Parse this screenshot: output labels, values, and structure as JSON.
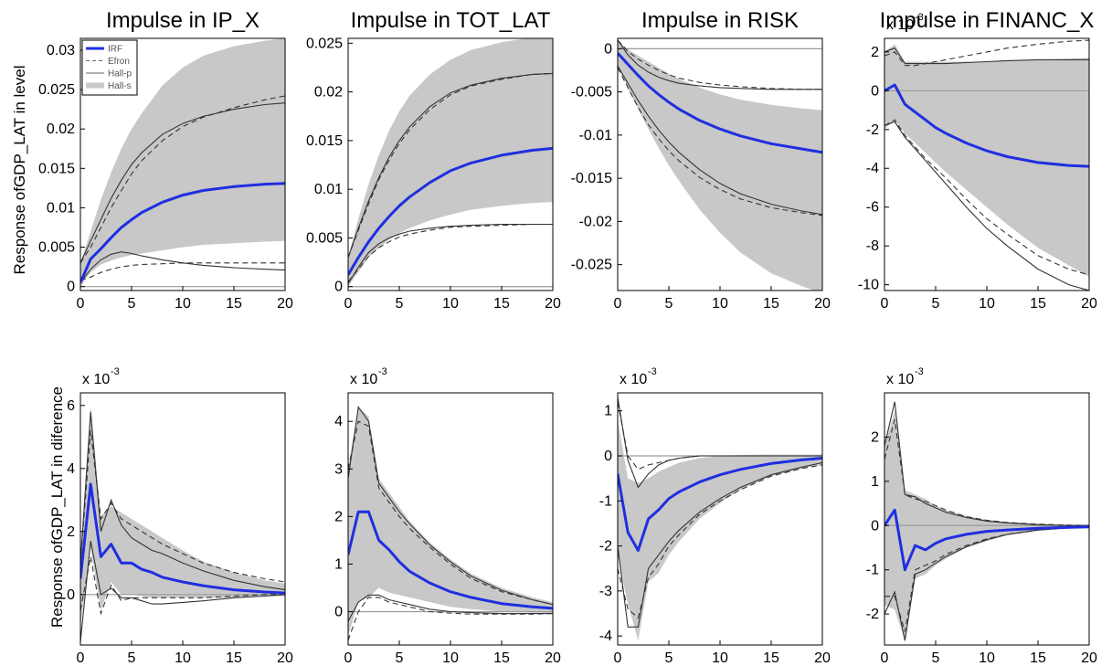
{
  "figure": {
    "row_labels": [
      "Response ofGDP_LAT in level",
      "Response ofGDP_LAT in diference"
    ]
  },
  "legend": {
    "entries": [
      "IRF",
      "Efron",
      "Hall-p",
      "Hall-s"
    ]
  },
  "colors": {
    "irf": "#1f2fe0",
    "band": "#c8c8c8",
    "line": "#333333",
    "zero": "#9a9a9a"
  },
  "chart_data": [
    {
      "type": "line",
      "title": "Impulse in IP_X",
      "row": 0,
      "col": 0,
      "xlim": [
        0,
        20
      ],
      "ylim": [
        -0.0005,
        0.0315
      ],
      "xticks": [
        0,
        5,
        10,
        15,
        20
      ],
      "xtick_labels": [
        "0",
        "5",
        "10",
        "15",
        "20"
      ],
      "yticks": [
        0,
        0.005,
        0.01,
        0.015,
        0.02,
        0.025,
        0.03
      ],
      "ytick_labels": [
        "0",
        "0.005",
        "0.01",
        "0.015",
        "0.02",
        "0.025",
        "0.03"
      ],
      "exponent_label": "",
      "x": [
        0,
        1,
        2,
        3,
        4,
        5,
        6,
        8,
        10,
        12,
        15,
        18,
        20
      ],
      "irf": [
        0.0005,
        0.0035,
        0.0048,
        0.0062,
        0.0075,
        0.0085,
        0.0094,
        0.0107,
        0.0116,
        0.0122,
        0.0127,
        0.013,
        0.0131
      ],
      "hall_s_upper": [
        0.003,
        0.007,
        0.011,
        0.0145,
        0.0175,
        0.02,
        0.022,
        0.0255,
        0.0278,
        0.0293,
        0.0305,
        0.0312,
        0.0315
      ],
      "hall_s_lower": [
        0.0,
        0.0018,
        0.0028,
        0.0033,
        0.0037,
        0.004,
        0.0042,
        0.0046,
        0.005,
        0.0053,
        0.0055,
        0.0057,
        0.0058
      ],
      "hall_p_upper": [
        0.003,
        0.0058,
        0.0085,
        0.0112,
        0.0135,
        0.0155,
        0.017,
        0.0193,
        0.0207,
        0.0216,
        0.0225,
        0.0231,
        0.0233
      ],
      "hall_p_lower": [
        0.0005,
        0.0022,
        0.0034,
        0.0041,
        0.0044,
        0.0042,
        0.0039,
        0.0034,
        0.003,
        0.0027,
        0.0024,
        0.0022,
        0.0021
      ],
      "efron_upper": [
        0.003,
        0.005,
        0.0075,
        0.01,
        0.0122,
        0.0143,
        0.016,
        0.0185,
        0.0203,
        0.0215,
        0.0227,
        0.0237,
        0.0242
      ],
      "efron_lower": [
        0.0008,
        0.0012,
        0.0018,
        0.0022,
        0.0025,
        0.0027,
        0.0028,
        0.0029,
        0.003,
        0.003,
        0.003,
        0.003,
        0.003
      ]
    },
    {
      "type": "line",
      "title": "Impulse in TOT_LAT",
      "row": 0,
      "col": 1,
      "xlim": [
        0,
        20
      ],
      "ylim": [
        -0.0004,
        0.0255
      ],
      "xticks": [
        0,
        5,
        10,
        15,
        20
      ],
      "xtick_labels": [
        "0",
        "5",
        "10",
        "15",
        "20"
      ],
      "yticks": [
        0,
        0.005,
        0.01,
        0.015,
        0.02,
        0.025
      ],
      "ytick_labels": [
        "0",
        "0.005",
        "0.01",
        "0.015",
        "0.02",
        "0.025"
      ],
      "exponent_label": "",
      "x": [
        0,
        1,
        2,
        3,
        4,
        5,
        6,
        8,
        10,
        12,
        15,
        18,
        20
      ],
      "irf": [
        0.0012,
        0.003,
        0.0046,
        0.006,
        0.0072,
        0.0083,
        0.0092,
        0.0107,
        0.0119,
        0.0127,
        0.0135,
        0.014,
        0.0142
      ],
      "hall_s_upper": [
        0.003,
        0.007,
        0.0105,
        0.0135,
        0.016,
        0.018,
        0.0196,
        0.0218,
        0.0233,
        0.0243,
        0.0251,
        0.0256,
        0.0258
      ],
      "hall_s_lower": [
        0.0,
        0.0015,
        0.003,
        0.004,
        0.0048,
        0.0055,
        0.006,
        0.0068,
        0.0074,
        0.0079,
        0.0083,
        0.0086,
        0.0087
      ],
      "hall_p_upper": [
        0.003,
        0.006,
        0.0088,
        0.0112,
        0.0133,
        0.015,
        0.0164,
        0.0185,
        0.0199,
        0.0207,
        0.0214,
        0.0218,
        0.0219
      ],
      "hall_p_lower": [
        0.0003,
        0.002,
        0.0035,
        0.0044,
        0.005,
        0.0054,
        0.0057,
        0.006,
        0.0062,
        0.0063,
        0.0064,
        0.0064,
        0.0064
      ],
      "efron_upper": [
        0.003,
        0.0058,
        0.0085,
        0.011,
        0.013,
        0.0147,
        0.0161,
        0.0182,
        0.0197,
        0.0206,
        0.0213,
        0.0218,
        0.0219
      ],
      "efron_lower": [
        0.0005,
        0.0018,
        0.0031,
        0.004,
        0.0046,
        0.0051,
        0.0054,
        0.0058,
        0.0061,
        0.0062,
        0.0063,
        0.0064,
        0.0064
      ]
    },
    {
      "type": "line",
      "title": "Impulse in RISK",
      "row": 0,
      "col": 2,
      "xlim": [
        0,
        20
      ],
      "ylim": [
        -0.028,
        0.0012
      ],
      "xticks": [
        0,
        5,
        10,
        15,
        20
      ],
      "xtick_labels": [
        "0",
        "5",
        "10",
        "15",
        "20"
      ],
      "yticks": [
        0,
        -0.005,
        -0.01,
        -0.015,
        -0.02,
        -0.025
      ],
      "ytick_labels": [
        "0",
        "-0.005",
        "-0.01",
        "-0.015",
        "-0.02",
        "-0.025"
      ],
      "exponent_label": "",
      "x": [
        0,
        1,
        2,
        3,
        4,
        5,
        6,
        8,
        10,
        12,
        15,
        18,
        20
      ],
      "irf": [
        -0.0005,
        -0.0018,
        -0.0031,
        -0.0043,
        -0.0053,
        -0.0062,
        -0.007,
        -0.0083,
        -0.0093,
        -0.0101,
        -0.011,
        -0.0116,
        -0.012
      ],
      "hall_s_upper": [
        0.001,
        -0.0001,
        -0.0008,
        -0.0015,
        -0.0022,
        -0.0029,
        -0.0035,
        -0.0045,
        -0.0053,
        -0.0059,
        -0.0065,
        -0.0069,
        -0.0071
      ],
      "hall_s_lower": [
        -0.002,
        -0.0045,
        -0.007,
        -0.0093,
        -0.0115,
        -0.0135,
        -0.0153,
        -0.0186,
        -0.0213,
        -0.0236,
        -0.026,
        -0.0275,
        -0.0283
      ],
      "hall_p_upper": [
        0.001,
        -0.0007,
        -0.0019,
        -0.0027,
        -0.0033,
        -0.0037,
        -0.004,
        -0.0043,
        -0.0045,
        -0.0046,
        -0.0047,
        -0.0047,
        -0.0047
      ],
      "hall_p_lower": [
        -0.002,
        -0.004,
        -0.006,
        -0.0078,
        -0.0094,
        -0.0108,
        -0.012,
        -0.014,
        -0.0156,
        -0.0168,
        -0.018,
        -0.0188,
        -0.0192
      ],
      "efron_upper": [
        0.001,
        -0.0003,
        -0.0012,
        -0.0019,
        -0.0025,
        -0.003,
        -0.0034,
        -0.0039,
        -0.0042,
        -0.0044,
        -0.0046,
        -0.0047,
        -0.0047
      ],
      "efron_lower": [
        -0.0022,
        -0.0045,
        -0.0068,
        -0.0088,
        -0.0104,
        -0.0118,
        -0.013,
        -0.0149,
        -0.0163,
        -0.0174,
        -0.0184,
        -0.019,
        -0.0193
      ]
    },
    {
      "type": "line",
      "title": "Impulse in FINANC_X",
      "row": 0,
      "col": 3,
      "xlim": [
        0,
        20
      ],
      "ylim": [
        -10.3,
        2.7
      ],
      "xticks": [
        0,
        5,
        10,
        15,
        20
      ],
      "xtick_labels": [
        "0",
        "5",
        "10",
        "15",
        "20"
      ],
      "yticks": [
        2,
        0,
        -2,
        -4,
        -6,
        -8,
        -10
      ],
      "ytick_labels": [
        "2",
        "0",
        "-2",
        "-4",
        "-6",
        "-8",
        "-10"
      ],
      "exponent_label": "x 10",
      "x": [
        0,
        1,
        2,
        3,
        4,
        5,
        6,
        8,
        10,
        12,
        15,
        18,
        20
      ],
      "irf": [
        0.0,
        0.3,
        -0.7,
        -1.1,
        -1.5,
        -1.9,
        -2.2,
        -2.7,
        -3.1,
        -3.4,
        -3.7,
        -3.85,
        -3.9
      ],
      "hall_s_upper": [
        2.0,
        2.4,
        1.5,
        1.5,
        1.5,
        1.5,
        1.5,
        1.5,
        1.5,
        1.55,
        1.6,
        1.65,
        1.7
      ],
      "hall_s_lower": [
        -2.0,
        -1.5,
        -2.2,
        -2.7,
        -3.2,
        -3.7,
        -4.2,
        -5.1,
        -6.0,
        -6.9,
        -8.1,
        -9.0,
        -9.6
      ],
      "hall_p_upper": [
        2.0,
        2.2,
        1.4,
        1.4,
        1.4,
        1.4,
        1.4,
        1.45,
        1.5,
        1.55,
        1.6,
        1.6,
        1.6
      ],
      "hall_p_lower": [
        -1.8,
        -1.6,
        -2.4,
        -3.0,
        -3.6,
        -4.2,
        -4.8,
        -6.0,
        -7.1,
        -8.0,
        -9.2,
        -10.0,
        -10.3
      ],
      "efron_upper": [
        1.8,
        2.0,
        1.3,
        1.3,
        1.4,
        1.5,
        1.6,
        1.8,
        2.0,
        2.2,
        2.4,
        2.55,
        2.6
      ],
      "efron_lower": [
        -1.8,
        -1.5,
        -2.3,
        -2.9,
        -3.5,
        -4.0,
        -4.5,
        -5.6,
        -6.6,
        -7.4,
        -8.5,
        -9.2,
        -9.5
      ]
    },
    {
      "type": "line",
      "title": "",
      "row": 1,
      "col": 0,
      "xlim": [
        0,
        20
      ],
      "ylim": [
        -1.6,
        6.4
      ],
      "xticks": [
        0,
        5,
        10,
        15,
        20
      ],
      "xtick_labels": [
        "0",
        "5",
        "10",
        "15",
        "20"
      ],
      "yticks": [
        0,
        2,
        4,
        6
      ],
      "ytick_labels": [
        "0",
        "2",
        "4",
        "6"
      ],
      "exponent_label": "x 10",
      "x": [
        0,
        1,
        2,
        3,
        4,
        5,
        6,
        7,
        8,
        10,
        12,
        15,
        18,
        20
      ],
      "irf": [
        0.5,
        3.5,
        1.2,
        1.6,
        1.0,
        1.0,
        0.8,
        0.7,
        0.55,
        0.4,
        0.28,
        0.15,
        0.08,
        0.05
      ],
      "hall_s_upper": [
        1.0,
        6.0,
        2.5,
        2.8,
        2.6,
        2.4,
        2.2,
        2.0,
        1.8,
        1.4,
        1.05,
        0.7,
        0.45,
        0.35
      ],
      "hall_s_lower": [
        -1.0,
        1.5,
        -0.5,
        0.4,
        0.0,
        0.0,
        -0.05,
        -0.1,
        -0.1,
        -0.1,
        -0.1,
        -0.1,
        -0.05,
        -0.05
      ],
      "hall_p_upper": [
        1.0,
        5.8,
        2.0,
        3.0,
        2.2,
        1.8,
        1.6,
        1.4,
        1.3,
        1.0,
        0.75,
        0.45,
        0.25,
        0.15
      ],
      "hall_p_lower": [
        -1.5,
        1.7,
        0.0,
        0.2,
        -0.1,
        -0.1,
        -0.2,
        -0.3,
        -0.3,
        -0.25,
        -0.2,
        -0.1,
        -0.05,
        0.0
      ],
      "efron_upper": [
        1.0,
        5.2,
        2.4,
        2.9,
        2.4,
        2.2,
        2.0,
        1.8,
        1.6,
        1.3,
        1.0,
        0.7,
        0.5,
        0.4
      ],
      "efron_lower": [
        -0.5,
        1.2,
        -0.6,
        0.3,
        -0.2,
        -0.1,
        -0.1,
        -0.1,
        -0.1,
        -0.1,
        -0.1,
        -0.05,
        0.0,
        0.0
      ]
    },
    {
      "type": "line",
      "title": "",
      "row": 1,
      "col": 1,
      "xlim": [
        0,
        20
      ],
      "ylim": [
        -0.7,
        4.6
      ],
      "xticks": [
        0,
        5,
        10,
        15,
        20
      ],
      "xtick_labels": [
        "0",
        "5",
        "10",
        "15",
        "20"
      ],
      "yticks": [
        0,
        1,
        2,
        3,
        4
      ],
      "ytick_labels": [
        "0",
        "1",
        "2",
        "3",
        "4"
      ],
      "exponent_label": "x 10",
      "x": [
        0,
        1,
        2,
        3,
        4,
        5,
        6,
        8,
        10,
        12,
        15,
        18,
        20
      ],
      "irf": [
        1.2,
        2.1,
        2.1,
        1.5,
        1.3,
        1.05,
        0.85,
        0.6,
        0.42,
        0.3,
        0.17,
        0.1,
        0.07
      ],
      "hall_s_upper": [
        3.0,
        4.3,
        4.1,
        2.8,
        2.5,
        2.2,
        1.9,
        1.45,
        1.1,
        0.8,
        0.5,
        0.3,
        0.2
      ],
      "hall_s_lower": [
        -0.5,
        0.2,
        0.3,
        0.5,
        0.4,
        0.35,
        0.3,
        0.2,
        0.1,
        0.05,
        0.0,
        -0.02,
        -0.03
      ],
      "hall_p_upper": [
        2.8,
        4.3,
        4.0,
        2.7,
        2.4,
        2.1,
        1.85,
        1.4,
        1.05,
        0.75,
        0.45,
        0.25,
        0.15
      ],
      "hall_p_lower": [
        -0.2,
        0.2,
        0.35,
        0.35,
        0.25,
        0.2,
        0.15,
        0.05,
        0.0,
        -0.02,
        -0.04,
        -0.04,
        -0.04
      ],
      "efron_upper": [
        3.0,
        4.0,
        3.9,
        2.6,
        2.3,
        2.0,
        1.75,
        1.35,
        1.0,
        0.7,
        0.42,
        0.25,
        0.15
      ],
      "efron_lower": [
        -0.6,
        0.0,
        0.3,
        0.3,
        0.2,
        0.15,
        0.1,
        0.0,
        -0.03,
        -0.05,
        -0.05,
        -0.05,
        -0.04
      ]
    },
    {
      "type": "line",
      "title": "",
      "row": 1,
      "col": 2,
      "xlim": [
        0,
        20
      ],
      "ylim": [
        -4.2,
        1.4
      ],
      "xticks": [
        0,
        5,
        10,
        15,
        20
      ],
      "xtick_labels": [
        "0",
        "5",
        "10",
        "15",
        "20"
      ],
      "yticks": [
        1,
        0,
        -1,
        -2,
        -3,
        -4
      ],
      "ytick_labels": [
        "1",
        "0",
        "-1",
        "-2",
        "-3",
        "-4"
      ],
      "exponent_label": "x 10",
      "x": [
        0,
        1,
        2,
        3,
        4,
        5,
        6,
        8,
        10,
        12,
        15,
        18,
        20
      ],
      "irf": [
        -0.4,
        -1.7,
        -2.1,
        -1.4,
        -1.2,
        -0.95,
        -0.8,
        -0.58,
        -0.42,
        -0.3,
        -0.17,
        -0.09,
        -0.05
      ],
      "hall_s_upper": [
        0.8,
        -0.5,
        -0.6,
        -0.5,
        -0.35,
        -0.25,
        -0.15,
        -0.05,
        0.0,
        0.02,
        0.03,
        0.03,
        0.03
      ],
      "hall_s_lower": [
        -2.2,
        -3.3,
        -4.1,
        -2.8,
        -2.6,
        -2.2,
        -1.9,
        -1.4,
        -1.05,
        -0.75,
        -0.45,
        -0.28,
        -0.2
      ],
      "hall_p_upper": [
        1.3,
        -0.1,
        -0.7,
        -0.4,
        -0.2,
        -0.1,
        -0.05,
        0.0,
        0.0,
        0.0,
        0.0,
        0.0,
        0.0
      ],
      "hall_p_lower": [
        -2.0,
        -3.8,
        -3.8,
        -2.5,
        -2.2,
        -1.9,
        -1.65,
        -1.25,
        -0.95,
        -0.7,
        -0.42,
        -0.25,
        -0.15
      ],
      "efron_upper": [
        1.2,
        0.0,
        -0.3,
        -0.2,
        -0.15,
        -0.1,
        -0.05,
        0.0,
        0.0,
        0.0,
        0.0,
        0.0,
        0.0
      ],
      "efron_lower": [
        -2.5,
        -3.4,
        -3.6,
        -2.7,
        -2.4,
        -2.0,
        -1.75,
        -1.3,
        -1.0,
        -0.75,
        -0.45,
        -0.28,
        -0.2
      ]
    },
    {
      "type": "line",
      "title": "",
      "row": 1,
      "col": 3,
      "xlim": [
        0,
        20
      ],
      "ylim": [
        -2.7,
        3.0
      ],
      "xticks": [
        0,
        5,
        10,
        15,
        20
      ],
      "xtick_labels": [
        "0",
        "5",
        "10",
        "15",
        "20"
      ],
      "yticks": [
        2,
        1,
        0,
        -1,
        -2
      ],
      "ytick_labels": [
        "2",
        "1",
        "0",
        "-1",
        "-2"
      ],
      "exponent_label": "x 10",
      "x": [
        0,
        1,
        2,
        3,
        4,
        5,
        6,
        8,
        10,
        12,
        15,
        18,
        20
      ],
      "irf": [
        0.0,
        0.35,
        -1.0,
        -0.45,
        -0.55,
        -0.4,
        -0.3,
        -0.2,
        -0.13,
        -0.1,
        -0.06,
        -0.04,
        -0.03
      ],
      "hall_s_upper": [
        1.8,
        2.6,
        0.8,
        0.7,
        0.6,
        0.45,
        0.35,
        0.22,
        0.13,
        0.08,
        0.04,
        0.02,
        0.02
      ],
      "hall_s_lower": [
        -1.8,
        -1.9,
        -2.6,
        -1.2,
        -1.1,
        -0.9,
        -0.75,
        -0.5,
        -0.35,
        -0.22,
        -0.12,
        -0.07,
        -0.05
      ],
      "hall_p_upper": [
        1.8,
        2.8,
        0.7,
        0.65,
        0.5,
        0.4,
        0.3,
        0.18,
        0.1,
        0.06,
        0.02,
        0.0,
        0.0
      ],
      "hall_p_lower": [
        -2.0,
        -1.5,
        -2.6,
        -1.1,
        -1.0,
        -0.85,
        -0.7,
        -0.48,
        -0.32,
        -0.2,
        -0.1,
        -0.05,
        -0.03
      ],
      "efron_upper": [
        1.5,
        2.4,
        0.7,
        0.6,
        0.55,
        0.45,
        0.35,
        0.2,
        0.12,
        0.07,
        0.03,
        0.01,
        0.0
      ],
      "efron_lower": [
        -1.6,
        -1.6,
        -2.4,
        -1.0,
        -0.9,
        -0.8,
        -0.65,
        -0.45,
        -0.3,
        -0.2,
        -0.1,
        -0.05,
        -0.03
      ]
    }
  ]
}
